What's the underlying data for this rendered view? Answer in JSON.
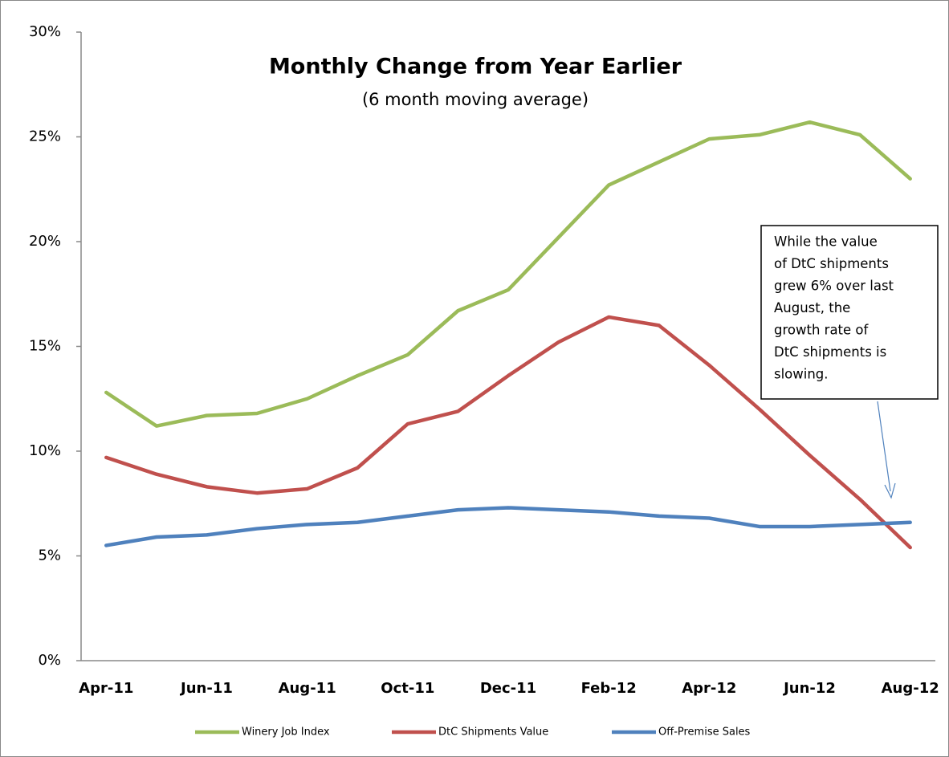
{
  "chart_data": {
    "type": "line",
    "title": "Monthly Change from Year Earlier",
    "subtitle": "(6 month moving average)",
    "categories": [
      "Apr-11",
      null,
      "Jun-11",
      null,
      "Aug-11",
      null,
      "Oct-11",
      null,
      "Dec-11",
      null,
      "Feb-12",
      null,
      "Apr-12",
      null,
      "Jun-12",
      null,
      "Aug-12"
    ],
    "series": [
      {
        "name": "Winery Job Index",
        "color": "#9bbb59",
        "values": [
          12.8,
          11.2,
          11.7,
          11.8,
          12.5,
          13.6,
          14.6,
          16.7,
          17.7,
          20.2,
          22.7,
          23.8,
          24.9,
          25.1,
          25.7,
          25.1,
          23.0
        ]
      },
      {
        "name": "DtC Shipments Value",
        "color": "#c0504d",
        "values": [
          9.7,
          8.9,
          8.3,
          8.0,
          8.2,
          9.2,
          11.3,
          11.9,
          13.6,
          15.2,
          16.4,
          16.0,
          14.1,
          12.0,
          9.8,
          7.7,
          5.4
        ]
      },
      {
        "name": "Off-Premise Sales",
        "color": "#4f81bd",
        "values": [
          5.5,
          5.9,
          6.0,
          6.3,
          6.5,
          6.6,
          6.9,
          7.2,
          7.3,
          7.2,
          7.1,
          6.9,
          6.8,
          6.4,
          6.4,
          6.5,
          6.6
        ]
      }
    ],
    "ylim": [
      0,
      30
    ],
    "yticks": [
      {
        "value": 0,
        "label": "0%"
      },
      {
        "value": 5,
        "label": "5%"
      },
      {
        "value": 10,
        "label": "10%"
      },
      {
        "value": 15,
        "label": "15%"
      },
      {
        "value": 20,
        "label": "20%"
      },
      {
        "value": 25,
        "label": "25%"
      },
      {
        "value": 30,
        "label": "30%"
      }
    ],
    "grid": false,
    "legend": "bottom",
    "annotation": {
      "lines": [
        "While the value",
        "of DtC shipments",
        "grew 6% over last",
        "August, the",
        "growth rate of",
        "DtC shipments is",
        "slowing."
      ]
    }
  }
}
